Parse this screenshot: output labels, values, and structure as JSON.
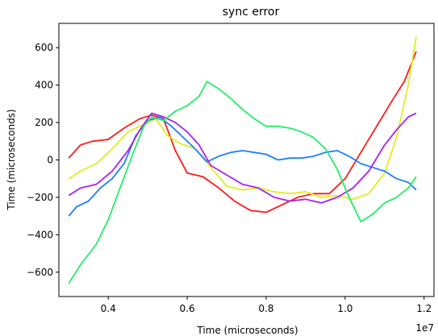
{
  "chart_data": {
    "type": "line",
    "title": "sync error",
    "xlabel": "Time (microseconds)",
    "ylabel": "Time (microseconds)",
    "x_offset_label": "1e7",
    "xlim": [
      2750000,
      12250000
    ],
    "ylim": [
      -730,
      730
    ],
    "xticks": [
      4000000,
      6000000,
      8000000,
      10000000,
      12000000
    ],
    "xtick_labels": [
      "0.4",
      "0.6",
      "0.8",
      "1.0",
      "1.2"
    ],
    "yticks": [
      -600,
      -400,
      -200,
      0,
      200,
      400,
      600
    ],
    "ytick_labels": [
      "−600",
      "−400",
      "−200",
      "0",
      "200",
      "400",
      "600"
    ],
    "grid": false,
    "series": [
      {
        "color": "#ff1a1a",
        "x": [
          3000000,
          3300000,
          3600000,
          4000000,
          4400000,
          4800000,
          5100000,
          5400000,
          5700000,
          6000000,
          6400000,
          6800000,
          7200000,
          7600000,
          8000000,
          8400000,
          8800000,
          9200000,
          9600000,
          10000000,
          10400000,
          10800000,
          11200000,
          11500000,
          11800000
        ],
        "y": [
          10,
          80,
          100,
          110,
          170,
          220,
          240,
          220,
          50,
          -70,
          -90,
          -150,
          -220,
          -270,
          -280,
          -240,
          -200,
          -180,
          -180,
          -100,
          40,
          180,
          320,
          420,
          580
        ]
      },
      {
        "color": "#ddee22",
        "x": [
          3000000,
          3300000,
          3700000,
          4100000,
          4500000,
          4900000,
          5200000,
          5500000,
          5800000,
          6200000,
          6600000,
          7000000,
          7400000,
          7800000,
          8200000,
          8600000,
          9000000,
          9400000,
          9800000,
          10200000,
          10600000,
          11000000,
          11300000,
          11600000,
          11800000
        ],
        "y": [
          -100,
          -60,
          -20,
          60,
          150,
          190,
          220,
          130,
          90,
          60,
          -40,
          -140,
          -160,
          -150,
          -170,
          -180,
          -170,
          -200,
          -190,
          -210,
          -180,
          -70,
          120,
          400,
          660
        ]
      },
      {
        "color": "#1a7fff",
        "x": [
          3000000,
          3200000,
          3500000,
          3800000,
          4100000,
          4400000,
          4700000,
          5000000,
          5300000,
          5600000,
          5900000,
          6200000,
          6500000,
          6800000,
          7100000,
          7400000,
          7700000,
          8000000,
          8300000,
          8600000,
          8900000,
          9200000,
          9500000,
          9800000,
          10100000,
          10400000,
          10700000,
          11000000,
          11300000,
          11600000,
          11800000
        ],
        "y": [
          -300,
          -250,
          -220,
          -150,
          -100,
          -20,
          130,
          210,
          230,
          180,
          120,
          60,
          -10,
          20,
          40,
          50,
          40,
          30,
          0,
          10,
          10,
          20,
          40,
          50,
          20,
          -20,
          -40,
          -60,
          -100,
          -120,
          -160
        ]
      },
      {
        "color": "#aa22ee",
        "x": [
          3000000,
          3300000,
          3700000,
          4100000,
          4500000,
          4800000,
          5100000,
          5400000,
          5700000,
          6000000,
          6300000,
          6600000,
          7000000,
          7400000,
          7800000,
          8200000,
          8600000,
          9000000,
          9400000,
          9800000,
          10200000,
          10600000,
          11000000,
          11300000,
          11600000,
          11800000
        ],
        "y": [
          -190,
          -150,
          -130,
          -60,
          50,
          160,
          250,
          230,
          200,
          150,
          80,
          -30,
          -80,
          -130,
          -150,
          -200,
          -220,
          -210,
          -230,
          -200,
          -150,
          -60,
          80,
          160,
          230,
          250
        ]
      },
      {
        "color": "#22ee66",
        "x": [
          3000000,
          3300000,
          3700000,
          4000000,
          4300000,
          4600000,
          4900000,
          5100000,
          5400000,
          5700000,
          6000000,
          6300000,
          6500000,
          6800000,
          7100000,
          7400000,
          7700000,
          8000000,
          8300000,
          8600000,
          8900000,
          9200000,
          9500000,
          9800000,
          10100000,
          10400000,
          10700000,
          11000000,
          11300000,
          11600000,
          11800000
        ],
        "y": [
          -660,
          -560,
          -450,
          -320,
          -150,
          20,
          180,
          230,
          210,
          260,
          290,
          340,
          420,
          380,
          330,
          270,
          220,
          180,
          180,
          170,
          150,
          120,
          60,
          -50,
          -200,
          -330,
          -290,
          -230,
          -200,
          -150,
          -90
        ]
      }
    ]
  }
}
